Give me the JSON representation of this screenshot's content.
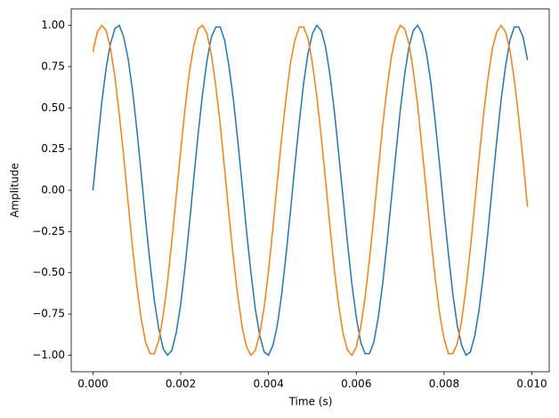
{
  "chart_data": {
    "type": "line",
    "x_label": "Time (s)",
    "y_label": "Amplitude",
    "x": [
      0.0,
      0.0001,
      0.0002,
      0.0003,
      0.0004,
      0.0005,
      0.0006,
      0.0007,
      0.0008,
      0.0009,
      0.001,
      0.0011,
      0.0012,
      0.0013,
      0.0014,
      0.0015,
      0.0016,
      0.0017,
      0.0018,
      0.0019,
      0.002,
      0.0021,
      0.0022,
      0.0023,
      0.0024,
      0.0025,
      0.0026,
      0.0027,
      0.0028,
      0.0029,
      0.003,
      0.0031,
      0.0032,
      0.0033,
      0.0034,
      0.0035,
      0.0036,
      0.0037,
      0.0038,
      0.0039,
      0.004,
      0.0041,
      0.0042,
      0.0043,
      0.0044,
      0.0045,
      0.0046,
      0.0047,
      0.0048,
      0.0049,
      0.005,
      0.0051,
      0.0052,
      0.0053,
      0.0054,
      0.0055,
      0.0056,
      0.0057,
      0.0058,
      0.0059,
      0.006,
      0.0061,
      0.0062,
      0.0063,
      0.0064,
      0.0065,
      0.0066,
      0.0067,
      0.0068,
      0.0069,
      0.007,
      0.0071,
      0.0072,
      0.0073,
      0.0074,
      0.0075,
      0.0076,
      0.0077,
      0.0078,
      0.0079,
      0.008,
      0.0081,
      0.0082,
      0.0083,
      0.0084,
      0.0085,
      0.0086,
      0.0087,
      0.0088,
      0.0089,
      0.009,
      0.0091,
      0.0092,
      0.0093,
      0.0094,
      0.0095,
      0.0096,
      0.0097,
      0.0098,
      0.0099
    ],
    "series": [
      {
        "color": "#1f77b4",
        "values": [
          0.0,
          0.27,
          0.53,
          0.74,
          0.89,
          0.98,
          1.0,
          0.93,
          0.8,
          0.61,
          0.37,
          0.1,
          -0.18,
          -0.44,
          -0.67,
          -0.84,
          -0.96,
          -1.0,
          -0.97,
          -0.86,
          -0.69,
          -0.46,
          -0.2,
          0.08,
          0.35,
          0.59,
          0.79,
          0.93,
          0.99,
          0.99,
          0.91,
          0.75,
          0.55,
          0.3,
          0.03,
          -0.25,
          -0.5,
          -0.72,
          -0.88,
          -0.98,
          -1.0,
          -0.94,
          -0.82,
          -0.63,
          -0.39,
          -0.13,
          0.15,
          0.41,
          0.65,
          0.83,
          0.95,
          1.0,
          0.97,
          0.87,
          0.7,
          0.48,
          0.22,
          -0.05,
          -0.32,
          -0.57,
          -0.77,
          -0.92,
          -0.99,
          -0.99,
          -0.92,
          -0.77,
          -0.57,
          -0.32,
          -0.05,
          0.22,
          0.48,
          0.7,
          0.87,
          0.97,
          1.0,
          0.95,
          0.83,
          0.65,
          0.41,
          0.15,
          -0.13,
          -0.39,
          -0.63,
          -0.82,
          -0.94,
          -1.0,
          -0.98,
          -0.88,
          -0.72,
          -0.5,
          -0.25,
          0.03,
          0.3,
          0.55,
          0.75,
          0.91,
          0.99,
          0.99,
          0.93,
          0.79
        ]
      },
      {
        "color": "#ff7f0e",
        "values": [
          0.84,
          0.96,
          1.0,
          0.97,
          0.86,
          0.69,
          0.46,
          0.21,
          -0.07,
          -0.34,
          -0.58,
          -0.78,
          -0.92,
          -0.99,
          -0.99,
          -0.91,
          -0.76,
          -0.55,
          -0.3,
          -0.03,
          0.24,
          0.5,
          0.72,
          0.88,
          0.98,
          1.0,
          0.95,
          0.82,
          0.63,
          0.4,
          0.13,
          -0.15,
          -0.41,
          -0.64,
          -0.83,
          -0.95,
          -1.0,
          -0.97,
          -0.87,
          -0.71,
          -0.49,
          -0.23,
          0.05,
          0.32,
          0.56,
          0.77,
          0.91,
          0.99,
          0.99,
          0.92,
          0.77,
          0.57,
          0.33,
          0.06,
          -0.22,
          -0.48,
          -0.7,
          -0.87,
          -0.97,
          -1.0,
          -0.95,
          -0.83,
          -0.65,
          -0.42,
          -0.16,
          0.12,
          0.39,
          0.62,
          0.81,
          0.94,
          1.0,
          0.98,
          0.89,
          0.72,
          0.51,
          0.25,
          -0.02,
          -0.29,
          -0.54,
          -0.75,
          -0.9,
          -0.99,
          -0.99,
          -0.93,
          -0.79,
          -0.59,
          -0.35,
          -0.08,
          0.2,
          0.46,
          0.68,
          0.86,
          0.96,
          1.0,
          0.96,
          0.85,
          0.67,
          0.44,
          0.18,
          -0.1
        ]
      }
    ],
    "xlim": [
      -0.000495,
      0.010395
    ],
    "ylim": [
      -1.1,
      1.1
    ],
    "xticks": [
      {
        "value": 0,
        "label": "0.000"
      },
      {
        "value": 0.002,
        "label": "0.002"
      },
      {
        "value": 0.004,
        "label": "0.004"
      },
      {
        "value": 0.006,
        "label": "0.006"
      },
      {
        "value": 0.008,
        "label": "0.008"
      },
      {
        "value": 0.01,
        "label": "0.010"
      }
    ],
    "yticks": [
      {
        "value": -1,
        "label": "−1.00"
      },
      {
        "value": -0.75,
        "label": "−0.75"
      },
      {
        "value": -0.5,
        "label": "−0.50"
      },
      {
        "value": -0.25,
        "label": "−0.25"
      },
      {
        "value": 0,
        "label": "0.00"
      },
      {
        "value": 0.25,
        "label": "0.25"
      },
      {
        "value": 0.5,
        "label": "0.50"
      },
      {
        "value": 0.75,
        "label": "0.75"
      },
      {
        "value": 1,
        "label": "1.00"
      }
    ],
    "grid": false
  }
}
